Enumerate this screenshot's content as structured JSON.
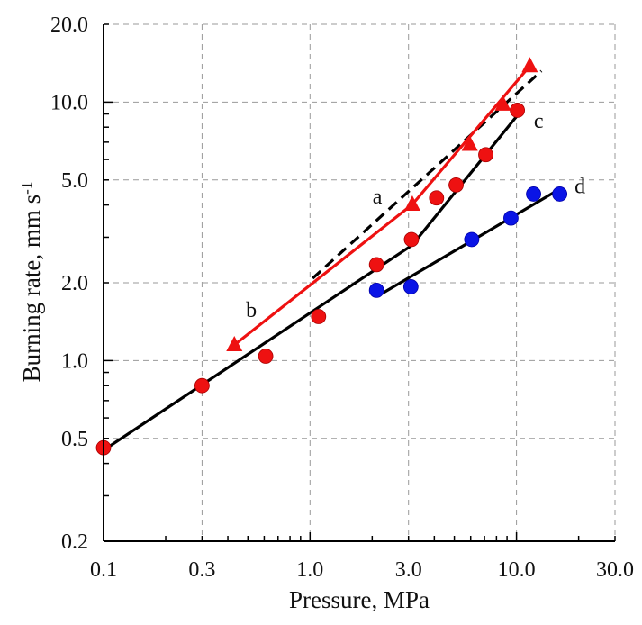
{
  "chart_data": {
    "type": "scatter",
    "xlabel": "Pressure, MPa",
    "ylabel": "Burning rate, mm s",
    "ylabel_superscript": "-1",
    "xscale": "log",
    "yscale": "log",
    "xlim": [
      0.1,
      30
    ],
    "ylim": [
      0.2,
      20
    ],
    "grid": true,
    "xticks": [
      "0.1",
      "0.3",
      "1.0",
      "3.0",
      "10.0",
      "30.0"
    ],
    "yticks": [
      "0.2",
      "0.5",
      "1.0",
      "2.0",
      "5.0",
      "10.0",
      "20.0"
    ],
    "colors": {
      "red": "#ee1111",
      "blue": "#0a14e6",
      "black": "#000000"
    },
    "series": [
      {
        "marker": "circle",
        "color": "#ee1111",
        "points": [
          [
            0.1,
            0.46
          ],
          [
            0.3,
            0.8
          ],
          [
            0.61,
            1.04
          ],
          [
            1.1,
            1.48
          ],
          [
            2.1,
            2.35
          ],
          [
            3.1,
            2.94
          ],
          [
            4.1,
            4.26
          ],
          [
            5.1,
            4.78
          ],
          [
            7.1,
            6.26
          ],
          [
            10.1,
            9.3
          ]
        ]
      },
      {
        "marker": "triangle",
        "color": "#ee1111",
        "points": [
          [
            0.43,
            1.15
          ],
          [
            3.13,
            4.02
          ],
          [
            5.94,
            6.85
          ],
          [
            8.6,
            9.8
          ],
          [
            11.6,
            13.8
          ]
        ]
      },
      {
        "marker": "circle",
        "color": "#0a14e6",
        "points": [
          [
            2.1,
            1.87
          ],
          [
            3.08,
            1.93
          ],
          [
            6.07,
            2.94
          ],
          [
            9.4,
            3.56
          ],
          [
            12.1,
            4.41
          ],
          [
            16.2,
            4.41
          ]
        ]
      }
    ],
    "lines": [
      {
        "label": "a",
        "style": "dashed",
        "color": "#000000",
        "points": [
          [
            1.03,
            2.08
          ],
          [
            13.2,
            13.2
          ]
        ],
        "label_pos": [
          2.12,
          4.29
        ]
      },
      {
        "label": "b",
        "style": "solid",
        "color": "#ee1111",
        "points": [
          [
            0.43,
            1.15
          ],
          [
            3.13,
            4.02
          ],
          [
            11.6,
            13.8
          ]
        ],
        "label_pos": [
          0.52,
          1.56
        ]
      },
      {
        "label": "c",
        "style": "solid",
        "color": "#000000",
        "points": [
          [
            0.1,
            0.45
          ],
          [
            3.13,
            2.8
          ],
          [
            10.0,
            8.8
          ]
        ],
        "label_pos": [
          12.8,
          8.4
        ]
      },
      {
        "label": "d",
        "style": "solid",
        "color": "#000000",
        "points": [
          [
            2.11,
            1.77
          ],
          [
            16.2,
            4.61
          ]
        ],
        "label_pos": [
          20.3,
          4.7
        ]
      }
    ]
  }
}
